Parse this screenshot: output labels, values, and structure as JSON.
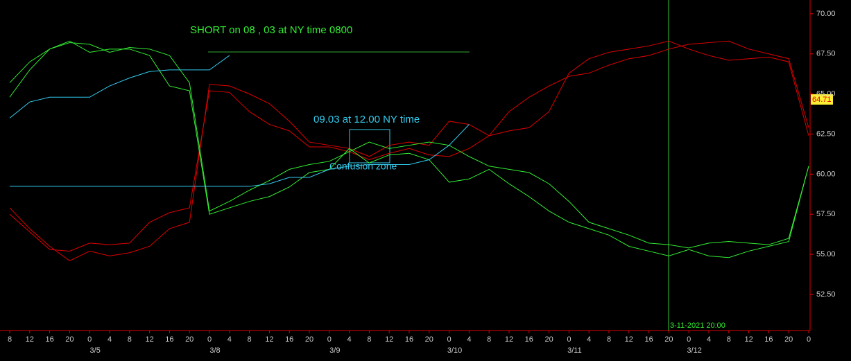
{
  "chart_data": {
    "type": "line",
    "categories": [
      8,
      12,
      16,
      20,
      0,
      4,
      8,
      12,
      16,
      20,
      0,
      4,
      8,
      12,
      16,
      20,
      0,
      4,
      8,
      12,
      16,
      20,
      0,
      4,
      8,
      12,
      16,
      20,
      0,
      4,
      8,
      12,
      16,
      20,
      0,
      4,
      8,
      12,
      16,
      20,
      0
    ],
    "date_labels": [
      null,
      null,
      null,
      null,
      "3/5",
      null,
      null,
      null,
      null,
      null,
      "3/8",
      null,
      null,
      null,
      null,
      null,
      "3/9",
      null,
      null,
      null,
      null,
      null,
      "3/10",
      null,
      null,
      null,
      null,
      null,
      "3/11",
      null,
      null,
      null,
      null,
      null,
      "3/12",
      null,
      null,
      null,
      null,
      null,
      null
    ],
    "ylim": [
      50.25,
      70.86
    ],
    "yticks": [
      {
        "value": 52.5,
        "label": "52.50"
      },
      {
        "value": 55,
        "label": "55.00"
      },
      {
        "value": 57.5,
        "label": "57.50"
      },
      {
        "value": 60,
        "label": "60.00"
      },
      {
        "value": 62.5,
        "label": "62.50"
      },
      {
        "value": 65,
        "label": "65.00"
      },
      {
        "value": 67.5,
        "label": "67.50"
      },
      {
        "value": 70,
        "label": "70.00"
      }
    ],
    "series": [
      {
        "color": "#e00000",
        "values": [
          57.9,
          56.6,
          55.5,
          54.6,
          55.2,
          54.9,
          55.1,
          55.5,
          56.6,
          57.0,
          65.6,
          65.5,
          65.0,
          64.4,
          63.3,
          62.0,
          61.8,
          61.6,
          61.1,
          61.8,
          62.0,
          61.8,
          63.3,
          63.1,
          62.4,
          62.7,
          62.9,
          63.9,
          66.3,
          67.2,
          67.6,
          67.8,
          68.0,
          68.3,
          67.8,
          67.4,
          67.1,
          67.2,
          67.3,
          67.0,
          62.4
        ]
      },
      {
        "color": "#e00000",
        "values": [
          57.5,
          56.4,
          55.3,
          55.2,
          55.7,
          55.6,
          55.7,
          57.0,
          57.6,
          57.9,
          65.2,
          65.1,
          63.9,
          63.1,
          62.7,
          61.7,
          61.7,
          61.4,
          60.9,
          61.3,
          61.6,
          61.2,
          61.1,
          61.6,
          62.4,
          63.9,
          64.8,
          65.5,
          66.1,
          66.3,
          66.8,
          67.2,
          67.4,
          67.8,
          68.1,
          68.2,
          68.3,
          67.8,
          67.5,
          67.2,
          62.9
        ]
      },
      {
        "color": "#33ee33",
        "values": [
          64.8,
          66.5,
          67.8,
          68.2,
          68.1,
          67.6,
          67.9,
          67.8,
          67.4,
          65.7,
          57.7,
          58.3,
          59.0,
          59.6,
          60.3,
          60.6,
          60.8,
          61.4,
          62.0,
          61.6,
          61.8,
          62.0,
          61.8,
          61.1,
          60.5,
          60.3,
          60.1,
          59.4,
          58.3,
          57.0,
          56.6,
          56.2,
          55.7,
          55.6,
          55.4,
          55.7,
          55.8,
          55.7,
          55.6,
          56.0,
          60.5
        ]
      },
      {
        "color": "#33ee33",
        "values": [
          65.7,
          67.0,
          67.8,
          68.3,
          67.6,
          67.8,
          67.8,
          67.4,
          65.5,
          65.2,
          57.5,
          57.9,
          58.3,
          58.6,
          59.2,
          60.1,
          60.3,
          61.6,
          60.7,
          61.2,
          61.3,
          60.9,
          59.5,
          59.7,
          60.3,
          59.4,
          58.6,
          57.7,
          57.0,
          56.6,
          56.2,
          55.5,
          55.2,
          54.9,
          55.3,
          54.9,
          54.8,
          55.2,
          55.5,
          55.8,
          60.5
        ]
      },
      {
        "color": "#33ccee",
        "values": [
          59.24,
          59.24,
          59.24,
          59.24,
          59.24,
          59.24,
          59.24,
          59.24,
          59.24,
          59.24,
          59.24,
          59.24,
          59.24,
          59.4,
          59.8,
          59.8,
          60.3,
          60.5,
          60.6,
          60.6,
          60.6,
          60.9,
          61.8,
          63.1,
          null,
          null,
          null,
          null,
          null,
          null,
          null,
          null,
          null,
          null,
          null,
          null,
          null,
          null,
          null,
          null,
          null
        ]
      },
      {
        "color": "#33ccee",
        "values": [
          63.5,
          64.5,
          64.8,
          64.8,
          64.8,
          65.5,
          66.0,
          66.4,
          66.5,
          66.5,
          66.5,
          67.4,
          null,
          null,
          null,
          null,
          null,
          null,
          null,
          null,
          null,
          null,
          null,
          null,
          null,
          null,
          null,
          null,
          null,
          null,
          null,
          null,
          null,
          null,
          null,
          null,
          null,
          null,
          null,
          null,
          null
        ]
      }
    ],
    "annotations": {
      "short_signal": "SHORT  on 08 , 03  at NY time  0800",
      "time_note": "09.03  at 12.00 NY time",
      "zone": "Confusion zone",
      "cursor_time": "3-11-2021 20:00",
      "last_price": "64.71"
    }
  }
}
